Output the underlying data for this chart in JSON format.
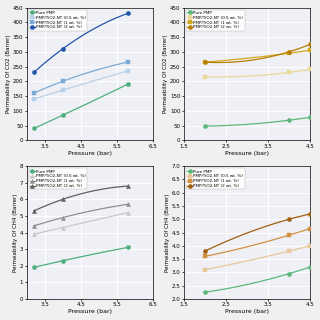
{
  "top_left": {
    "xlabel": "Pressure (bar)",
    "ylabel": "Permeability Of CO2 (Barrer)",
    "xlim": [
      3.0,
      6.5
    ],
    "ylim": [
      0,
      450
    ],
    "yticks": [
      0,
      50,
      100,
      150,
      200,
      250,
      300,
      350,
      400,
      450
    ],
    "xticks": [
      3.5,
      4.5,
      5.5,
      6.5
    ],
    "series": [
      {
        "label": "Pure PMP",
        "color": "#4caf7d",
        "marker": "o",
        "markersize": 3,
        "x": [
          3.2,
          4.0,
          5.8
        ],
        "y": [
          40,
          85,
          190
        ]
      },
      {
        "label": "PMP/TiO2-NT (0.5 wt. %)",
        "color": "#b8cfe8",
        "marker": "s",
        "markersize": 3,
        "x": [
          3.2,
          4.0,
          5.8
        ],
        "y": [
          140,
          170,
          235
        ]
      },
      {
        "label": "PMP/TiO2-NT (1 wt. %)",
        "color": "#7baad4",
        "marker": "s",
        "markersize": 3,
        "x": [
          3.2,
          4.0,
          5.8
        ],
        "y": [
          160,
          200,
          265
        ]
      },
      {
        "label": "PMP/TiO2-NT (2 wt. %)",
        "color": "#2255aa",
        "marker": "o",
        "markersize": 3,
        "x": [
          3.2,
          4.0,
          5.8
        ],
        "y": [
          230,
          310,
          430
        ]
      }
    ]
  },
  "top_right": {
    "xlabel": "Pressure (bar)",
    "ylabel": "Permeability Of CO2 (Barrer)",
    "xlim": [
      1.5,
      4.5
    ],
    "ylim": [
      0.0,
      450.0
    ],
    "yticks": [
      0.0,
      50.0,
      100.0,
      150.0,
      200.0,
      250.0,
      300.0,
      350.0,
      400.0,
      450.0
    ],
    "xticks": [
      1.5,
      2.5,
      3.5,
      4.5
    ],
    "series": [
      {
        "label": "Pure PMP",
        "color": "#5cb87a",
        "marker": "o",
        "markersize": 3,
        "x": [
          2.0,
          4.0,
          4.5
        ],
        "y": [
          48,
          68,
          78
        ]
      },
      {
        "label": "PMP/TiO2-NT (0.5 wt. %)",
        "color": "#e8d898",
        "marker": "s",
        "markersize": 2.5,
        "x": [
          2.0,
          4.0,
          4.5
        ],
        "y": [
          215,
          230,
          240
        ]
      },
      {
        "label": "PMP/TiO2-NT (1 wt. %)",
        "color": "#d4a820",
        "marker": "s",
        "markersize": 2.5,
        "x": [
          2.0,
          4.0,
          4.5
        ],
        "y": [
          265,
          295,
          305
        ]
      },
      {
        "label": "PMP/TiO2-NT (2 wt. %)",
        "color": "#b88000",
        "marker": "o",
        "markersize": 3,
        "x": [
          2.0,
          4.0,
          4.5
        ],
        "y": [
          265,
          300,
          325
        ]
      }
    ]
  },
  "bottom_left": {
    "xlabel": "Pressure (bar)",
    "ylabel": "Permeability Of CH4 (Barrer)",
    "xlim": [
      3.0,
      6.5
    ],
    "ylim": [
      0,
      8
    ],
    "yticks": [
      0,
      1,
      2,
      3,
      4,
      5,
      6,
      7,
      8
    ],
    "xticks": [
      3.5,
      4.5,
      5.5,
      6.5
    ],
    "series": [
      {
        "label": "Pure PMP",
        "color": "#4caf7d",
        "marker": "o",
        "markersize": 3,
        "x": [
          3.2,
          4.0,
          5.8
        ],
        "y": [
          1.9,
          2.3,
          3.1
        ]
      },
      {
        "label": "PMP/TiO2-NT (0.5 wt. %)",
        "color": "#c8c8c8",
        "marker": "^",
        "markersize": 3,
        "x": [
          3.2,
          4.0,
          5.8
        ],
        "y": [
          3.9,
          4.3,
          5.2
        ]
      },
      {
        "label": "PMP/TiO2-NT (1 wt. %)",
        "color": "#909090",
        "marker": "^",
        "markersize": 3,
        "x": [
          3.2,
          4.0,
          5.8
        ],
        "y": [
          4.4,
          4.9,
          5.7
        ]
      },
      {
        "label": "PMP/TiO2-NT (2 wt. %)",
        "color": "#606060",
        "marker": "^",
        "markersize": 3,
        "x": [
          3.2,
          4.0,
          5.8
        ],
        "y": [
          5.3,
          6.0,
          6.8
        ]
      }
    ]
  },
  "bottom_right": {
    "xlabel": "Pressure (bar)",
    "ylabel": "Permeability Of CH4 (Barrer)",
    "xlim": [
      1.5,
      4.5
    ],
    "ylim": [
      2.0,
      7.0
    ],
    "yticks": [
      2.0,
      2.5,
      3.0,
      3.5,
      4.0,
      4.5,
      5.0,
      5.5,
      6.0,
      6.5,
      7.0
    ],
    "xticks": [
      1.5,
      2.5,
      3.5,
      4.5
    ],
    "series": [
      {
        "label": "Pure PMP",
        "color": "#5cb87a",
        "marker": "o",
        "markersize": 3,
        "x": [
          2.0,
          4.0,
          4.5
        ],
        "y": [
          2.25,
          2.95,
          3.2
        ]
      },
      {
        "label": "PMP/TiO2-NT (0.5 wt. %)",
        "color": "#e8c898",
        "marker": "s",
        "markersize": 2.5,
        "x": [
          2.0,
          4.0,
          4.5
        ],
        "y": [
          3.1,
          3.8,
          4.0
        ]
      },
      {
        "label": "PMP/TiO2-NT (1 wt. %)",
        "color": "#d09040",
        "marker": "s",
        "markersize": 2.5,
        "x": [
          2.0,
          4.0,
          4.5
        ],
        "y": [
          3.6,
          4.4,
          4.65
        ]
      },
      {
        "label": "PMP/TiO2-NT (2 wt. %)",
        "color": "#a06010",
        "marker": "o",
        "markersize": 3,
        "x": [
          2.0,
          4.0,
          4.5
        ],
        "y": [
          3.8,
          5.0,
          5.2
        ]
      }
    ]
  }
}
